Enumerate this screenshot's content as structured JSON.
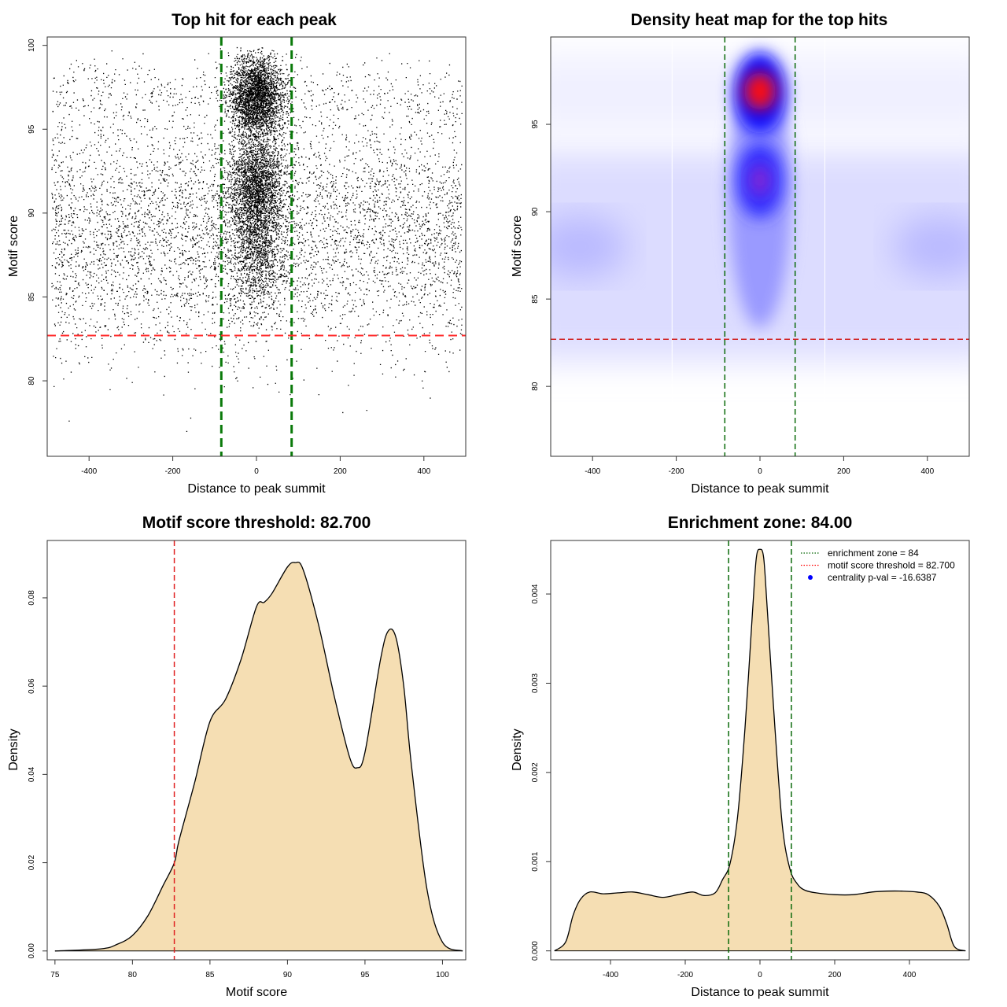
{
  "chart_data": [
    {
      "id": "scatter",
      "type": "scatter",
      "title": "Top hit for each peak",
      "xlabel": "Distance to peak summit",
      "ylabel": "Motif score",
      "xlim": [
        -500,
        500
      ],
      "ylim": [
        75.5,
        100.5
      ],
      "xticks": [
        -400,
        -200,
        0,
        200,
        400
      ],
      "yticks": [
        80,
        85,
        90,
        95,
        100
      ],
      "vlines": [
        -84,
        84
      ],
      "hline": 82.7,
      "grid": false,
      "description_of_points": "approx. 20000 top hits, uniform in distance between -500 and 500 with a dense central column near 0 spanning scores 83-100"
    },
    {
      "id": "heatmap",
      "type": "heatmap",
      "title": "Density heat map for the top hits",
      "xlabel": "Distance to peak summit",
      "ylabel": "Motif score",
      "xlim": [
        -500,
        500
      ],
      "ylim": [
        76,
        100
      ],
      "xticks": [
        -400,
        -200,
        0,
        200,
        400
      ],
      "yticks": [
        80,
        85,
        90,
        95
      ],
      "vlines": [
        -84,
        84
      ],
      "hline": 82.7,
      "colors": [
        "#ffffff",
        "#0000ff",
        "#ff0000"
      ],
      "hotspots": [
        {
          "x": 0,
          "y": 96.8,
          "level": 1.0
        },
        {
          "x": 0,
          "y": 91.8,
          "level": 0.55
        },
        {
          "x": -420,
          "y": 88,
          "level": 0.12
        },
        {
          "x": 420,
          "y": 88,
          "level": 0.12
        }
      ]
    },
    {
      "id": "score-density",
      "type": "area",
      "title": "Motif score threshold: 82.700",
      "xlabel": "Motif score",
      "ylabel": "Density",
      "xlim": [
        74.5,
        101.5
      ],
      "ylim": [
        -0.002,
        0.093
      ],
      "xticks": [
        75,
        80,
        85,
        90,
        95,
        100
      ],
      "yticks": [
        0.0,
        0.02,
        0.04,
        0.06,
        0.08
      ],
      "ytick_labels": [
        "0.00",
        "0.02",
        "0.04",
        "0.06",
        "0.08"
      ],
      "x": [
        75,
        78,
        79,
        80,
        81,
        82,
        82.7,
        83,
        84,
        85,
        86,
        87,
        88,
        88.5,
        89,
        90,
        90.5,
        91,
        92,
        93,
        94,
        94.5,
        95,
        96,
        96.5,
        97,
        97.5,
        98,
        99,
        100,
        101.3
      ],
      "y": [
        0,
        0.0005,
        0.0015,
        0.0035,
        0.008,
        0.015,
        0.02,
        0.025,
        0.038,
        0.052,
        0.057,
        0.066,
        0.078,
        0.079,
        0.081,
        0.087,
        0.088,
        0.0865,
        0.074,
        0.058,
        0.044,
        0.0415,
        0.045,
        0.066,
        0.0725,
        0.071,
        0.06,
        0.042,
        0.014,
        0.002,
        0
      ],
      "vline": 82.7,
      "fill": "#f5deb3"
    },
    {
      "id": "distance-density",
      "type": "area",
      "title": "Enrichment zone: 84.00",
      "xlabel": "Distance to peak summit",
      "ylabel": "Density",
      "xlim": [
        -560,
        560
      ],
      "ylim": [
        -0.0001,
        0.0046
      ],
      "xticks": [
        -400,
        -200,
        0,
        200,
        400
      ],
      "yticks": [
        0.0,
        0.001,
        0.002,
        0.003,
        0.004
      ],
      "ytick_labels": [
        "0.000",
        "0.001",
        "0.002",
        "0.003",
        "0.004"
      ],
      "x": [
        -550,
        -520,
        -500,
        -480,
        -455,
        -420,
        -380,
        -340,
        -300,
        -260,
        -220,
        -180,
        -150,
        -120,
        -100,
        -80,
        -60,
        -40,
        -20,
        -10,
        0,
        10,
        20,
        40,
        60,
        80,
        100,
        120,
        150,
        200,
        250,
        300,
        340,
        380,
        420,
        450,
        480,
        500,
        520,
        550
      ],
      "y": [
        0,
        0.0001,
        0.0004,
        0.00058,
        0.00066,
        0.00064,
        0.00065,
        0.00066,
        0.00063,
        0.0006,
        0.00063,
        0.00066,
        0.00062,
        0.00065,
        0.0008,
        0.00098,
        0.0015,
        0.0025,
        0.0038,
        0.0044,
        0.0045,
        0.0044,
        0.0038,
        0.0025,
        0.0014,
        0.00092,
        0.00075,
        0.00068,
        0.00065,
        0.00063,
        0.00063,
        0.00066,
        0.00067,
        0.00067,
        0.00066,
        0.00063,
        0.0005,
        0.0003,
        5e-05,
        0
      ],
      "vlines": [
        -84,
        84
      ],
      "fill": "#f5deb3",
      "legend_position": "top-right",
      "legend": [
        {
          "label": "enrichment zone = 84",
          "style": "dotted",
          "color": "#006400"
        },
        {
          "label": "motif score threshold = 82.700",
          "style": "dotted",
          "color": "#ff0000"
        },
        {
          "label": "centrality p-val = -16.6387",
          "style": "point",
          "color": "#0000ff"
        }
      ]
    }
  ]
}
